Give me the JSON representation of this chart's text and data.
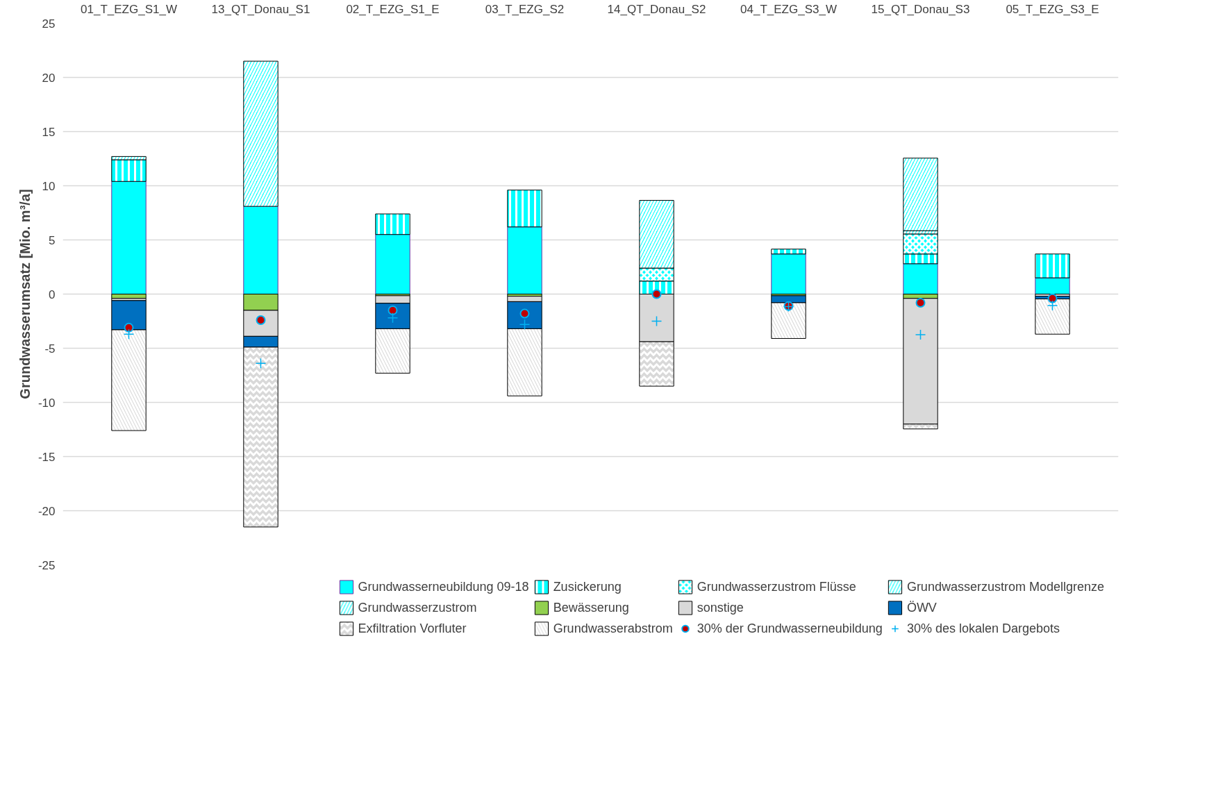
{
  "chart_data": {
    "type": "bar",
    "stacked": true,
    "ylabel": "Grundwasserumsatz [Mio. m³/a]",
    "categories": [
      "01_T_EZG_S1_W",
      "13_QT_Donau_S1",
      "02_T_EZG_S1_E",
      "03_T_EZG_S2",
      "14_QT_Donau_S2",
      "04_T_EZG_S3_W",
      "15_QT_Donau_S3",
      "05_T_EZG_S3_E"
    ],
    "ylim": [
      -25,
      25
    ],
    "yticks": [
      -25,
      -20,
      -15,
      -10,
      -5,
      0,
      5,
      10,
      15,
      20,
      25
    ],
    "grid": "y",
    "legend": "bottom",
    "series": [
      {
        "name": "Grundwasserneubildung 09-18",
        "color": "#00ffff",
        "values": [
          10.4,
          8.1,
          5.5,
          6.2,
          null,
          3.7,
          2.8,
          1.5
        ]
      },
      {
        "name": "Zusickerung",
        "color": "#00ffff",
        "values": [
          2.0,
          null,
          1.9,
          3.4,
          1.2,
          0.45,
          0.9,
          2.2
        ]
      },
      {
        "name": "Grundwasserzustrom Flüsse",
        "color": "#00ffff",
        "values": [
          null,
          null,
          null,
          null,
          1.2,
          null,
          1.85,
          null
        ]
      },
      {
        "name": "Grundwasserzustrom Modellgrenze",
        "color": "#00ffff",
        "values": [
          0.3,
          null,
          null,
          null,
          null,
          null,
          0.3,
          null
        ]
      },
      {
        "name": "Grundwasserzustrom",
        "color": "#00ffff",
        "values": [
          null,
          13.4,
          null,
          null,
          6.25,
          null,
          6.7,
          null
        ]
      },
      {
        "name": "Bewässerung",
        "color": "#92d050",
        "values": [
          -0.4,
          -1.5,
          -0.15,
          -0.2,
          null,
          -0.15,
          -0.4,
          null
        ]
      },
      {
        "name": "sonstige",
        "color": "#d9d9d9",
        "values": [
          -0.2,
          -2.4,
          -0.7,
          -0.5,
          -4.4,
          null,
          -11.6,
          -0.2
        ]
      },
      {
        "name": "ÖWV",
        "color": "#0070c0",
        "values": [
          -2.7,
          -1.0,
          -2.35,
          -2.5,
          null,
          -0.65,
          null,
          -0.25
        ]
      },
      {
        "name": "Exfiltration Vorfluter",
        "color": "#d9d9d9",
        "values": [
          null,
          -16.6,
          null,
          null,
          -4.1,
          null,
          -0.45,
          null
        ]
      },
      {
        "name": "Grundwasserabstrom",
        "color": "#d9d9d9",
        "values": [
          -9.3,
          null,
          -4.1,
          -6.2,
          null,
          -3.3,
          null,
          -3.25
        ]
      },
      {
        "name": "30% der Grundwasserneubildung",
        "type": "scatter",
        "marker": "circle",
        "color": "#c00000",
        "values": [
          -3.1,
          -2.4,
          -1.5,
          -1.8,
          0.0,
          -1.1,
          -0.8,
          -0.4
        ]
      },
      {
        "name": "30% des lokalen Dargebots",
        "type": "scatter",
        "marker": "cross",
        "color": "#00b0f0",
        "values": [
          -3.7,
          -6.4,
          -2.2,
          -2.8,
          -2.5,
          -1.15,
          -3.75,
          -1.05
        ]
      }
    ]
  }
}
